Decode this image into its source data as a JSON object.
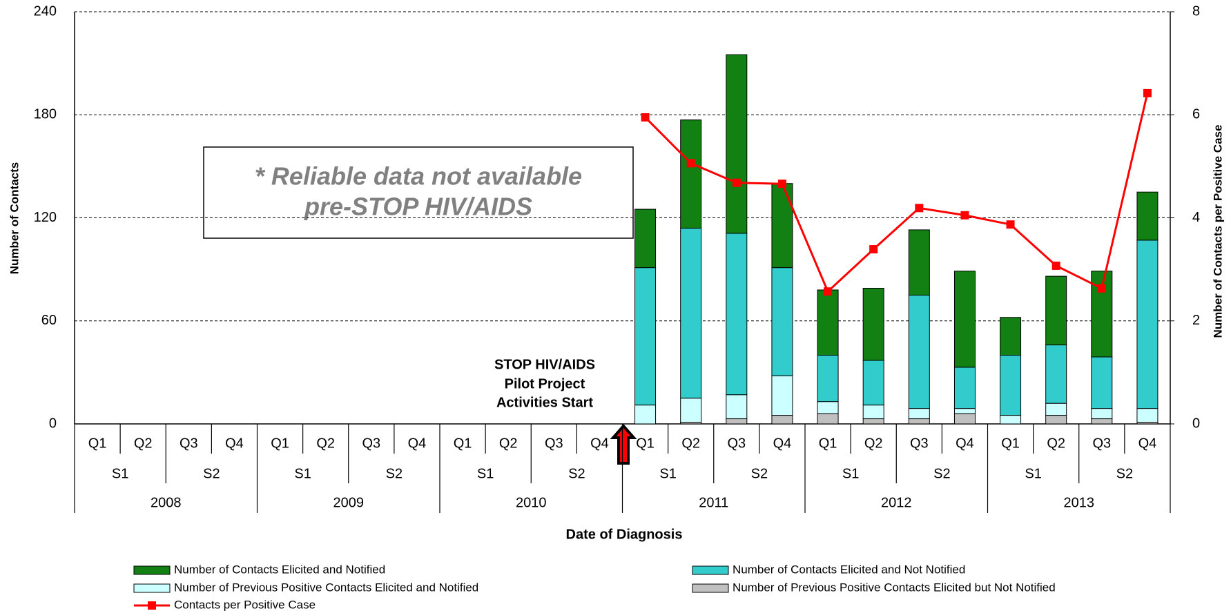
{
  "chart_data": {
    "type": "bar",
    "stacked": true,
    "x_label": "Date of Diagnosis",
    "y_label": "Number of Contacts",
    "y2_label": "Number of Contacts per Positive Case",
    "categories": [
      "Q1",
      "Q2",
      "Q3",
      "Q4",
      "Q1",
      "Q2",
      "Q3",
      "Q4",
      "Q1",
      "Q2",
      "Q3",
      "Q4",
      "Q1",
      "Q2",
      "Q3",
      "Q4",
      "Q1",
      "Q2",
      "Q3",
      "Q4",
      "Q1",
      "Q2",
      "Q3",
      "Q4"
    ],
    "halves": [
      "S1",
      "S2",
      "S1",
      "S2",
      "S1",
      "S2",
      "S1",
      "S2",
      "S1",
      "S2",
      "S1",
      "S2"
    ],
    "years": [
      "2008",
      "2009",
      "2010",
      "2011",
      "2012",
      "2013"
    ],
    "series": [
      {
        "name": "Number of Contacts Elicited and Notified",
        "color": "#138013",
        "values": [
          null,
          null,
          null,
          null,
          null,
          null,
          null,
          null,
          null,
          null,
          null,
          null,
          34,
          63,
          104,
          49,
          38,
          42,
          38,
          56,
          22,
          40,
          50,
          28
        ]
      },
      {
        "name": "Number of Contacts Elicited and Not Notified",
        "color": "#33cccc",
        "values": [
          null,
          null,
          null,
          null,
          null,
          null,
          null,
          null,
          null,
          null,
          null,
          null,
          80,
          99,
          94,
          63,
          27,
          26,
          66,
          24,
          35,
          34,
          30,
          98
        ]
      },
      {
        "name": "Number of Previous Positive Contacts Elicited and Notified",
        "color": "#ccffff",
        "values": [
          null,
          null,
          null,
          null,
          null,
          null,
          null,
          null,
          null,
          null,
          null,
          null,
          11,
          14,
          14,
          23,
          7,
          8,
          6,
          3,
          5,
          7,
          6,
          8
        ]
      },
      {
        "name": "Number of Previous Positive Contacts Elicited but Not Notified",
        "color": "#c0c0c0",
        "values": [
          null,
          null,
          null,
          null,
          null,
          null,
          null,
          null,
          null,
          null,
          null,
          null,
          0,
          1,
          3,
          5,
          6,
          3,
          3,
          6,
          0,
          5,
          3,
          1
        ]
      },
      {
        "name": "Contacts per Positive Case",
        "color": "#ff0000",
        "type": "line",
        "axis": "y2",
        "values": [
          null,
          null,
          null,
          null,
          null,
          null,
          null,
          null,
          null,
          null,
          null,
          null,
          5.95,
          5.06,
          4.68,
          4.66,
          2.57,
          3.39,
          4.19,
          4.05,
          3.87,
          3.07,
          2.63,
          6.42
        ]
      }
    ],
    "ylim": [
      0,
      240
    ],
    "yticks": [
      0,
      60,
      120,
      180,
      240
    ],
    "y2lim": [
      0,
      8
    ],
    "y2ticks": [
      0,
      2,
      4,
      6,
      8
    ],
    "grid": true,
    "legend": "bottom",
    "annotations": [
      {
        "lines": [
          "* Reliable data not available",
          "pre-STOP HIV/AIDS"
        ]
      },
      {
        "lines": [
          "STOP HIV/AIDS",
          "Pilot Project",
          "Activities Start"
        ]
      }
    ]
  }
}
